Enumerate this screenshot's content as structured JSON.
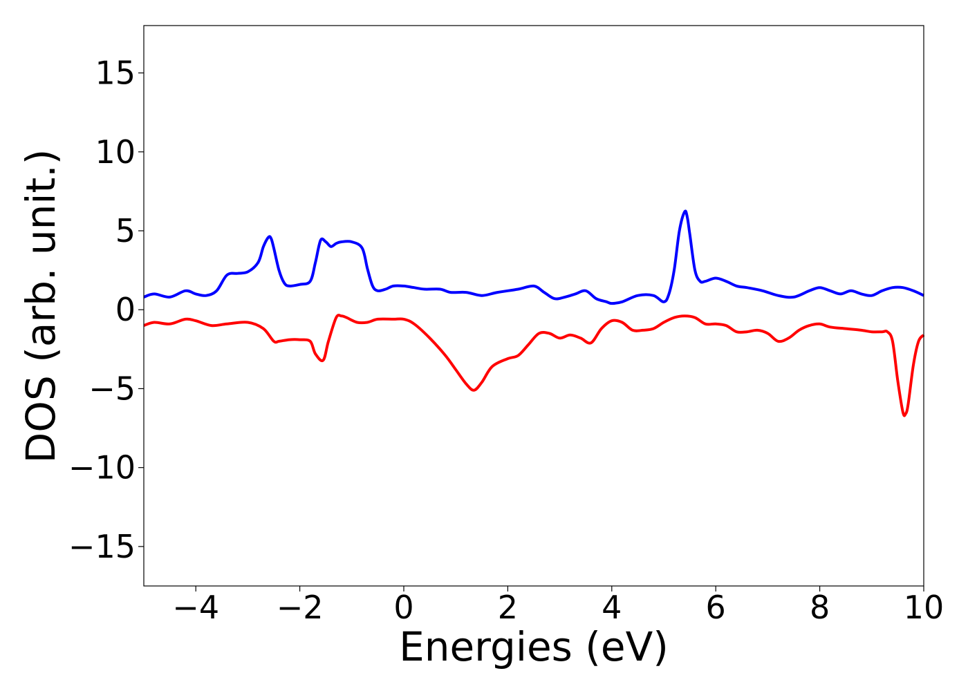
{
  "chart_data": {
    "type": "line",
    "title": "",
    "xlabel": "Energies (eV)",
    "ylabel": "DOS (arb. unit.)",
    "xlim": [
      -5,
      10
    ],
    "ylim": [
      -17.5,
      18
    ],
    "xticks": [
      -4,
      -2,
      0,
      2,
      4,
      6,
      8,
      10
    ],
    "xtick_labels": [
      "−4",
      "−2",
      "0",
      "2",
      "4",
      "6",
      "8",
      "10"
    ],
    "yticks": [
      -15,
      -10,
      -5,
      0,
      5,
      10,
      15
    ],
    "ytick_labels": [
      "−15",
      "−10",
      "−5",
      "0",
      "5",
      "10",
      "15"
    ],
    "grid": false,
    "legend": false,
    "series": [
      {
        "color": "#0000ff",
        "x": [
          -5.0,
          -4.8,
          -4.5,
          -4.2,
          -4.0,
          -3.8,
          -3.6,
          -3.4,
          -3.2,
          -3.0,
          -2.8,
          -2.7,
          -2.6,
          -2.55,
          -2.5,
          -2.4,
          -2.3,
          -2.2,
          -2.0,
          -1.8,
          -1.7,
          -1.6,
          -1.5,
          -1.4,
          -1.3,
          -1.2,
          -1.0,
          -0.8,
          -0.7,
          -0.6,
          -0.5,
          -0.35,
          -0.2,
          0.0,
          0.2,
          0.4,
          0.7,
          0.9,
          1.2,
          1.5,
          1.8,
          2.2,
          2.5,
          2.7,
          2.9,
          3.1,
          3.3,
          3.5,
          3.7,
          3.9,
          4.0,
          4.2,
          4.5,
          4.8,
          5.0,
          5.1,
          5.2,
          5.3,
          5.4,
          5.45,
          5.5,
          5.6,
          5.7,
          5.8,
          6.0,
          6.2,
          6.4,
          6.6,
          6.9,
          7.2,
          7.5,
          7.8,
          8.0,
          8.2,
          8.4,
          8.6,
          8.8,
          9.0,
          9.2,
          9.4,
          9.6,
          9.8,
          10.0
        ],
        "y": [
          0.8,
          1.0,
          0.8,
          1.2,
          1.0,
          0.9,
          1.2,
          2.2,
          2.3,
          2.4,
          3.0,
          4.0,
          4.6,
          4.5,
          3.9,
          2.5,
          1.7,
          1.5,
          1.6,
          1.8,
          3.0,
          4.4,
          4.3,
          4.0,
          4.2,
          4.3,
          4.3,
          3.9,
          2.6,
          1.5,
          1.2,
          1.3,
          1.5,
          1.5,
          1.4,
          1.3,
          1.3,
          1.1,
          1.1,
          0.9,
          1.1,
          1.3,
          1.5,
          1.1,
          0.7,
          0.8,
          1.0,
          1.2,
          0.7,
          0.5,
          0.4,
          0.5,
          0.9,
          0.9,
          0.5,
          1.0,
          2.5,
          5.0,
          6.2,
          5.9,
          4.8,
          2.5,
          1.8,
          1.8,
          2.0,
          1.8,
          1.5,
          1.4,
          1.2,
          0.9,
          0.8,
          1.2,
          1.4,
          1.2,
          1.0,
          1.2,
          1.0,
          0.9,
          1.2,
          1.4,
          1.4,
          1.2,
          0.9
        ]
      },
      {
        "color": "#ff0000",
        "x": [
          -5.0,
          -4.8,
          -4.5,
          -4.2,
          -4.0,
          -3.7,
          -3.4,
          -3.0,
          -2.7,
          -2.5,
          -2.4,
          -2.2,
          -2.0,
          -1.8,
          -1.7,
          -1.55,
          -1.45,
          -1.3,
          -1.2,
          -1.1,
          -0.9,
          -0.7,
          -0.5,
          -0.2,
          0.0,
          0.2,
          0.5,
          0.8,
          1.0,
          1.2,
          1.35,
          1.5,
          1.7,
          2.0,
          2.2,
          2.4,
          2.6,
          2.8,
          3.0,
          3.2,
          3.4,
          3.6,
          3.8,
          4.0,
          4.2,
          4.4,
          4.6,
          4.8,
          5.0,
          5.2,
          5.4,
          5.6,
          5.8,
          6.0,
          6.2,
          6.4,
          6.6,
          6.8,
          7.0,
          7.2,
          7.4,
          7.6,
          7.8,
          8.0,
          8.2,
          8.5,
          8.8,
          9.0,
          9.2,
          9.3,
          9.4,
          9.5,
          9.6,
          9.65,
          9.7,
          9.8,
          9.9,
          10.0
        ],
        "y": [
          -1.0,
          -0.8,
          -0.9,
          -0.6,
          -0.7,
          -1.0,
          -0.9,
          -0.8,
          -1.2,
          -2.0,
          -2.0,
          -1.9,
          -1.9,
          -2.0,
          -2.8,
          -3.2,
          -2.0,
          -0.5,
          -0.4,
          -0.5,
          -0.8,
          -0.8,
          -0.6,
          -0.6,
          -0.6,
          -0.9,
          -1.8,
          -2.9,
          -3.8,
          -4.7,
          -5.1,
          -4.6,
          -3.6,
          -3.1,
          -2.9,
          -2.2,
          -1.5,
          -1.5,
          -1.8,
          -1.6,
          -1.8,
          -2.1,
          -1.2,
          -0.7,
          -0.8,
          -1.3,
          -1.3,
          -1.2,
          -0.8,
          -0.5,
          -0.4,
          -0.5,
          -0.9,
          -0.9,
          -1.0,
          -1.4,
          -1.4,
          -1.3,
          -1.5,
          -2.0,
          -1.8,
          -1.3,
          -1.0,
          -0.9,
          -1.1,
          -1.2,
          -1.3,
          -1.4,
          -1.4,
          -1.4,
          -2.0,
          -4.5,
          -6.5,
          -6.6,
          -6.0,
          -3.5,
          -2.0,
          -1.6
        ]
      }
    ]
  }
}
